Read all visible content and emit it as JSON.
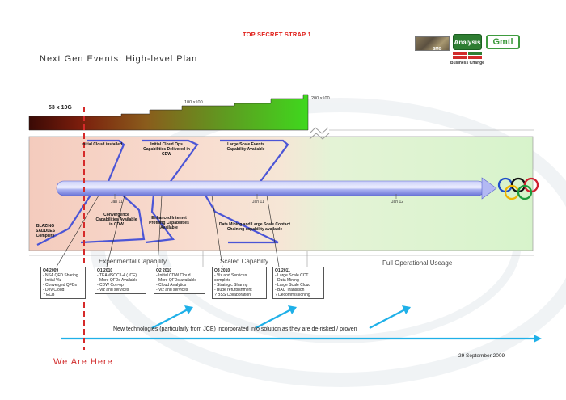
{
  "header": {
    "classification": "TOP SECRET STRAP 1",
    "title": "Next Gen Events: High-level Plan",
    "logos": {
      "photo_caption": "SMG",
      "analysis": "Analysis",
      "gmtl": "Gmtl",
      "business_change": "Business Change"
    }
  },
  "bandwidth": {
    "start": "53 x 10G",
    "mid": "100 x100",
    "end": "200 x100"
  },
  "timeline": {
    "ticks": [
      "Jan 11",
      "Jan 11",
      "Jan 12"
    ]
  },
  "milestones_top": {
    "cloud_installed": "Initial Cloud installed",
    "cloud_ops": "Initial Cloud Ops Capabilities Delivered in CDW",
    "large_scale": "Large Scale Events Capability Available"
  },
  "milestones_bottom": {
    "blazing_saddles": "BLAZING SADDLES Complete",
    "convergence": "Convergence Capabilities Available in CDW",
    "internet_profiling": "Enhanced Internet Profiling Capabilities Available",
    "data_mining": "Data Mining and Large Scale Contact Chaining capability available"
  },
  "phases": {
    "experimental": "Experimental Capability",
    "scaled": "Scaled Capabilty",
    "full": "Full Operational Useage"
  },
  "quarters": [
    {
      "title": "Q4 2009",
      "items": [
        "- NSA QFD Sharing",
        "- Initial Viz",
        "- Converged QFDs",
        "- Dev Cloud",
        "? ECB"
      ]
    },
    {
      "title": "Q1 2010",
      "items": [
        "- TEAMSOC1-4 (JCE)",
        "- More QFDs Available",
        "- CDW Con-op",
        "- Viz and services"
      ]
    },
    {
      "title": "Q2 2010",
      "items": [
        "- Initial CDW Cloud",
        "- More QFDs available",
        "- Cloud Analytics",
        "- Viz and services"
      ]
    },
    {
      "title": "Q3 2010",
      "items": [
        "- Viz and Services",
        "complete",
        "- Strategic Sharing",
        "- Bude refurbishment",
        "? BSS Collaboration"
      ]
    },
    {
      "title": "Q1 2011",
      "items": [
        "- Large Scale CCT",
        "- Data Mining",
        "- Large Scale Cloud",
        "- BAU Transition",
        "? Decommissioning"
      ]
    }
  ],
  "footer": {
    "technologies": "New technologies (particularly from JCE) incorporated into solution as they are de-risked / proven",
    "we_are_here": "We Are Here",
    "date": "29 September 2009"
  },
  "colors": {
    "classification_red": "#e0201b",
    "here_line_red": "#d62a2a",
    "pipe_blue": "#8e96ee",
    "callout_blue": "#4b55d6",
    "arrow_cyan": "#1fb0e8",
    "zone_pink": "#f7d8cc",
    "zone_green": "#dcf5d2"
  }
}
